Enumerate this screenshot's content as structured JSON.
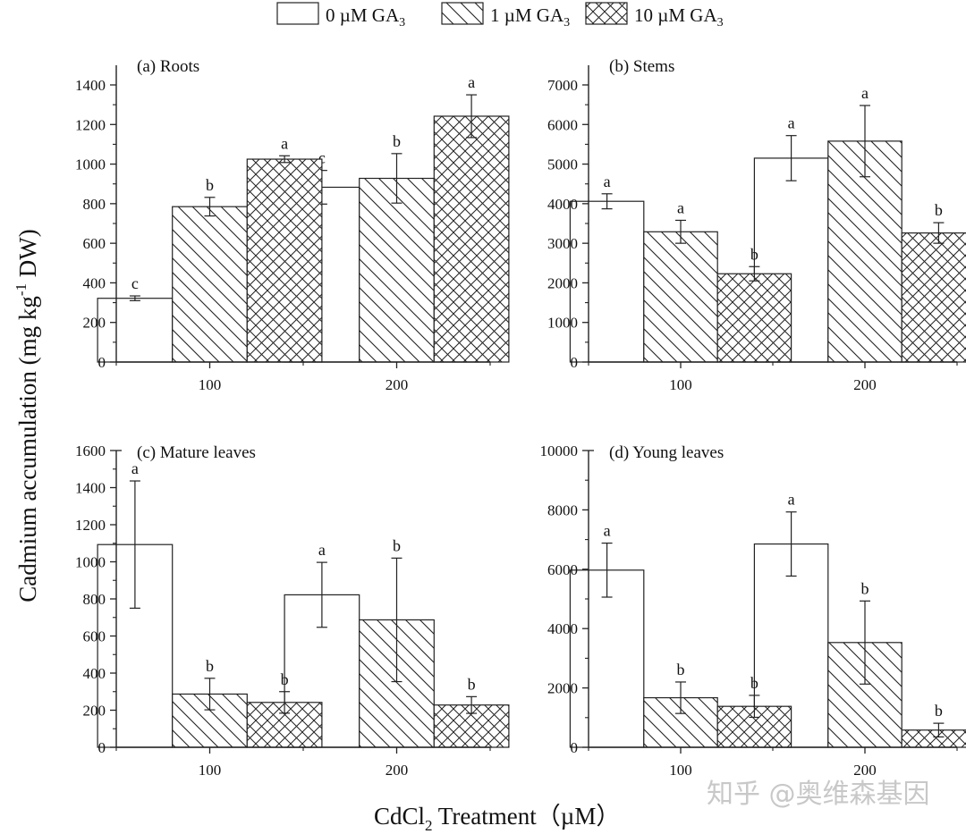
{
  "legend": {
    "items": [
      {
        "label": "0 µM GA",
        "sub": "3",
        "pattern": "empty"
      },
      {
        "label": "1 µM GA",
        "sub": "3",
        "pattern": "diagonal"
      },
      {
        "label": "10 µM GA",
        "sub": "3",
        "pattern": "crosshatch"
      }
    ]
  },
  "ylabel": {
    "main": "Cadmium accumulation (mg kg",
    "sup": "-1",
    "tail": " DW)"
  },
  "xlabel": {
    "pre": "CdCl",
    "sub": "2",
    "tail": " Treatment（µM）"
  },
  "watermark": "知乎 @奥维森基因",
  "chart_data": [
    {
      "type": "bar",
      "title": "(a) Roots",
      "categories": [
        "100",
        "200"
      ],
      "ylim": [
        0,
        1400
      ],
      "yticks": [
        0,
        200,
        400,
        600,
        800,
        1000,
        1200,
        1400
      ],
      "series": [
        {
          "name": "0 µM GA3",
          "values": [
            322,
            883
          ],
          "errors": [
            12,
            85
          ],
          "letters": [
            "c",
            "c"
          ]
        },
        {
          "name": "1 µM GA3",
          "values": [
            785,
            928
          ],
          "errors": [
            47,
            125
          ],
          "letters": [
            "b",
            "b"
          ]
        },
        {
          "name": "10 µM GA3",
          "values": [
            1025,
            1242
          ],
          "errors": [
            17,
            108
          ],
          "letters": [
            "a",
            "a"
          ]
        }
      ]
    },
    {
      "type": "bar",
      "title": "(b) Stems",
      "categories": [
        "100",
        "200"
      ],
      "ylim": [
        0,
        7000
      ],
      "yticks": [
        0,
        1000,
        2000,
        3000,
        4000,
        5000,
        6000,
        7000
      ],
      "series": [
        {
          "name": "0 µM GA3",
          "values": [
            4060,
            5150
          ],
          "errors": [
            190,
            570
          ],
          "letters": [
            "a",
            "a"
          ]
        },
        {
          "name": "1 µM GA3",
          "values": [
            3290,
            5580
          ],
          "errors": [
            290,
            900
          ],
          "letters": [
            "a",
            "a"
          ]
        },
        {
          "name": "10 µM GA3",
          "values": [
            2230,
            3260
          ],
          "errors": [
            180,
            260
          ],
          "letters": [
            "b",
            "b"
          ]
        }
      ]
    },
    {
      "type": "bar",
      "title": "(c) Mature leaves",
      "categories": [
        "100",
        "200"
      ],
      "ylim": [
        0,
        1600
      ],
      "yticks": [
        0,
        200,
        400,
        600,
        800,
        1000,
        1200,
        1400,
        1600
      ],
      "series": [
        {
          "name": "0 µM GA3",
          "values": [
            1093,
            822
          ],
          "errors": [
            343,
            175
          ],
          "letters": [
            "a",
            "a"
          ]
        },
        {
          "name": "1 µM GA3",
          "values": [
            287,
            687
          ],
          "errors": [
            85,
            333
          ],
          "letters": [
            "b",
            "b"
          ]
        },
        {
          "name": "10 µM GA3",
          "values": [
            242,
            228
          ],
          "errors": [
            58,
            45
          ],
          "letters": [
            "b",
            "b"
          ]
        }
      ]
    },
    {
      "type": "bar",
      "title": "(d) Young leaves",
      "categories": [
        "100",
        "200"
      ],
      "ylim": [
        0,
        10000
      ],
      "yticks": [
        0,
        2000,
        4000,
        6000,
        8000,
        10000
      ],
      "series": [
        {
          "name": "0 µM GA3",
          "values": [
            5970,
            6850
          ],
          "errors": [
            910,
            1080
          ],
          "letters": [
            "a",
            "a"
          ]
        },
        {
          "name": "1 µM GA3",
          "values": [
            1670,
            3530
          ],
          "errors": [
            530,
            1400
          ],
          "letters": [
            "b",
            "b"
          ]
        },
        {
          "name": "10 µM GA3",
          "values": [
            1380,
            580
          ],
          "errors": [
            370,
            230
          ],
          "letters": [
            "b",
            "b"
          ]
        }
      ]
    }
  ]
}
